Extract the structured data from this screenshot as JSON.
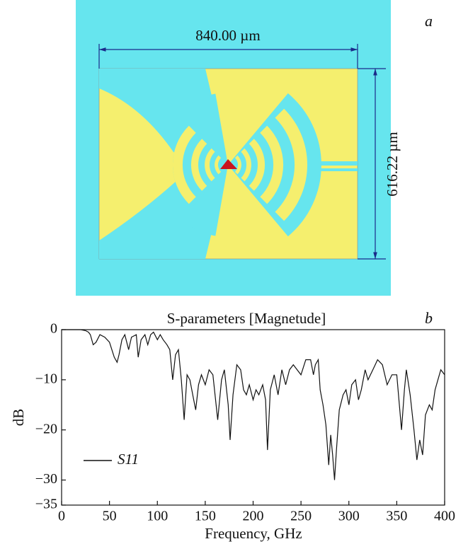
{
  "panel_a": {
    "label": "a",
    "width_label": "840.00 µm",
    "height_label": "616.22 µm"
  },
  "chart_data": {
    "type": "line",
    "panel_label": "b",
    "title": "S-parameters [Magnetude]",
    "x_label": "Frequency, GHz",
    "y_label": "dB",
    "xlim": [
      0,
      400
    ],
    "xticks": [
      0,
      50,
      100,
      150,
      200,
      250,
      300,
      350,
      400
    ],
    "ylim": [
      -35,
      0
    ],
    "yticks": [
      0,
      {
        "value": -10,
        "label": "−10"
      },
      {
        "value": -20,
        "label": "−20"
      },
      {
        "value": -30,
        "label": "−30"
      },
      {
        "value": -35,
        "label": "−35"
      }
    ],
    "legend": "lower left",
    "x": [
      0,
      10,
      20,
      25,
      28,
      30,
      33,
      36,
      40,
      45,
      50,
      55,
      58,
      60,
      63,
      66,
      70,
      73,
      78,
      80,
      83,
      87,
      90,
      93,
      96,
      100,
      103,
      106,
      110,
      113,
      116,
      119,
      122,
      125,
      128,
      131,
      134,
      138,
      140,
      143,
      146,
      150,
      154,
      158,
      163,
      167,
      170,
      174,
      176,
      179,
      183,
      187,
      190,
      193,
      196,
      200,
      203,
      206,
      210,
      213,
      215,
      218,
      222,
      226,
      230,
      234,
      238,
      242,
      246,
      250,
      255,
      260,
      263,
      265,
      268,
      270,
      273,
      276,
      279,
      281,
      283,
      285,
      287,
      290,
      294,
      297,
      300,
      303,
      307,
      310,
      313,
      317,
      320,
      325,
      330,
      335,
      340,
      345,
      350,
      355,
      358,
      360,
      364,
      368,
      371,
      374,
      377,
      380,
      384,
      387,
      390,
      393,
      396,
      400
    ],
    "series": [
      {
        "name": "S11",
        "color": "#111111",
        "values": [
          0,
          0,
          0,
          -0.2,
          -0.5,
          -1,
          -3,
          -2.5,
          -1,
          -1.5,
          -2.5,
          -5.5,
          -6.5,
          -5,
          -2,
          -1,
          -4,
          -1.5,
          -1,
          -5.5,
          -2,
          -1,
          -3,
          -1,
          -0.5,
          -2,
          -1,
          -2,
          -3,
          -4,
          -10,
          -5,
          -4,
          -10,
          -18,
          -9,
          -10,
          -14,
          -16,
          -11,
          -9,
          -11,
          -8,
          -9,
          -18,
          -10,
          -8,
          -15,
          -22,
          -13,
          -7,
          -8,
          -12,
          -13,
          -11,
          -14,
          -12,
          -13,
          -11,
          -14,
          -24,
          -12,
          -9,
          -13,
          -8,
          -11,
          -8,
          -7,
          -8,
          -9,
          -6,
          -6,
          -9,
          -7,
          -6,
          -12,
          -15,
          -19,
          -27,
          -21,
          -25,
          -30,
          -24,
          -16,
          -13,
          -12,
          -15,
          -11,
          -10,
          -14,
          -12,
          -8,
          -10,
          -8,
          -6,
          -7,
          -11,
          -9,
          -9,
          -20,
          -12,
          -8,
          -13,
          -20,
          -26,
          -22,
          -25,
          -17,
          -15,
          -16,
          -12,
          -10,
          -8,
          -9
        ]
      }
    ]
  }
}
